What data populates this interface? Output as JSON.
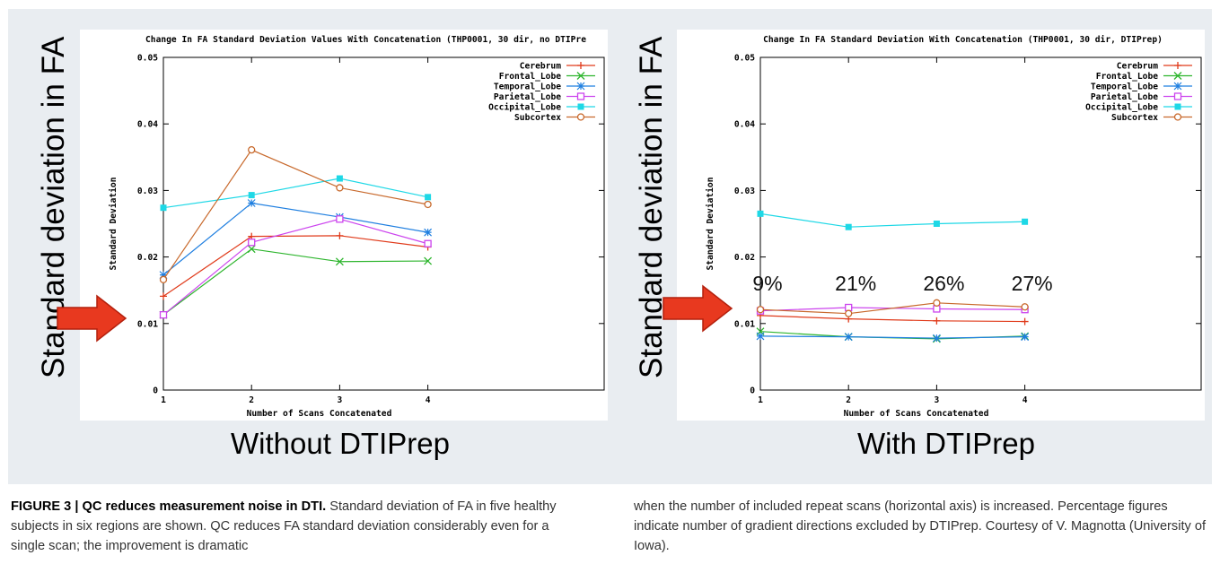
{
  "side_label": "Standard deviation in FA",
  "panels": [
    {
      "condition": "Without DTIPrep"
    },
    {
      "condition": "With DTIPrep"
    }
  ],
  "colors": {
    "Cerebrum": "#e03a1a",
    "Frontal_Lobe": "#2db52d",
    "Temporal_Lobe": "#1f7fe0",
    "Parietal_Lobe": "#cc44ee",
    "Occipital_Lobe": "#1ed8e6",
    "Subcortex": "#c8692c"
  },
  "chart_data": [
    {
      "type": "line",
      "title": "Change In FA Standard Deviation Values With Concatenation (THP0001, 30 dir, no DTIPre",
      "xlabel": "Number of Scans Concatenated",
      "ylabel": "Standard Deviation",
      "xlim": [
        1,
        6
      ],
      "ylim": [
        0,
        0.05
      ],
      "xticks": [
        "1",
        "2",
        "3",
        "4"
      ],
      "yticks": [
        "0",
        "0.01",
        "0.02",
        "0.03",
        "0.04",
        "0.05"
      ],
      "x": [
        1,
        2,
        3,
        4
      ],
      "legend_position": "top-right",
      "grid": false,
      "series": [
        {
          "name": "Cerebrum",
          "marker": "plus",
          "values": [
            0.0141,
            0.0231,
            0.0232,
            0.0215
          ]
        },
        {
          "name": "Frontal_Lobe",
          "marker": "x",
          "values": [
            0.0113,
            0.0212,
            0.0193,
            0.0194
          ]
        },
        {
          "name": "Temporal_Lobe",
          "marker": "star",
          "values": [
            0.0173,
            0.0281,
            0.026,
            0.0237
          ]
        },
        {
          "name": "Parietal_Lobe",
          "marker": "square",
          "values": [
            0.0113,
            0.0222,
            0.0257,
            0.022
          ]
        },
        {
          "name": "Occipital_Lobe",
          "marker": "filled-square",
          "values": [
            0.0274,
            0.0293,
            0.0318,
            0.029
          ]
        },
        {
          "name": "Subcortex",
          "marker": "circle",
          "values": [
            0.0166,
            0.0361,
            0.0304,
            0.0279
          ]
        }
      ],
      "annotations": []
    },
    {
      "type": "line",
      "title": "Change In FA Standard Deviation With Concatenation (THP0001, 30 dir, DTIPrep)",
      "xlabel": "Number of Scans Concatenated",
      "ylabel": "Standard Deviation",
      "xlim": [
        1,
        6
      ],
      "ylim": [
        0,
        0.05
      ],
      "xticks": [
        "1",
        "2",
        "3",
        "4"
      ],
      "yticks": [
        "0",
        "0.01",
        "0.02",
        "0.03",
        "0.04",
        "0.05"
      ],
      "x": [
        1,
        2,
        3,
        4
      ],
      "legend_position": "top-right",
      "grid": false,
      "series": [
        {
          "name": "Cerebrum",
          "marker": "plus",
          "values": [
            0.0112,
            0.0107,
            0.0104,
            0.0103
          ]
        },
        {
          "name": "Frontal_Lobe",
          "marker": "x",
          "values": [
            0.0088,
            0.008,
            0.0077,
            0.0081
          ]
        },
        {
          "name": "Temporal_Lobe",
          "marker": "star",
          "values": [
            0.0081,
            0.008,
            0.0078,
            0.008
          ]
        },
        {
          "name": "Parietal_Lobe",
          "marker": "square",
          "values": [
            0.0119,
            0.0124,
            0.0122,
            0.0121
          ]
        },
        {
          "name": "Occipital_Lobe",
          "marker": "filled-square",
          "values": [
            0.0265,
            0.0245,
            0.025,
            0.0253
          ]
        },
        {
          "name": "Subcortex",
          "marker": "circle",
          "values": [
            0.0121,
            0.0115,
            0.0131,
            0.0125
          ]
        }
      ],
      "annotations": [
        {
          "x": 1,
          "text": "9%"
        },
        {
          "x": 2,
          "text": "21%"
        },
        {
          "x": 3,
          "text": "26%"
        },
        {
          "x": 4,
          "text": "27%"
        }
      ]
    }
  ],
  "caption": {
    "heading": "FIGURE 3 | QC reduces measurement noise in DTI.",
    "left_body": " Standard deviation of FA in five healthy subjects in six regions are shown. QC reduces FA standard deviation considerably even for a single scan; the improvement is dramatic",
    "right_body": "when the number of included repeat scans (horizontal axis) is increased. Percentage figures indicate number of gradient directions excluded by DTIPrep. Courtesy of V. Magnotta (University of Iowa)."
  }
}
